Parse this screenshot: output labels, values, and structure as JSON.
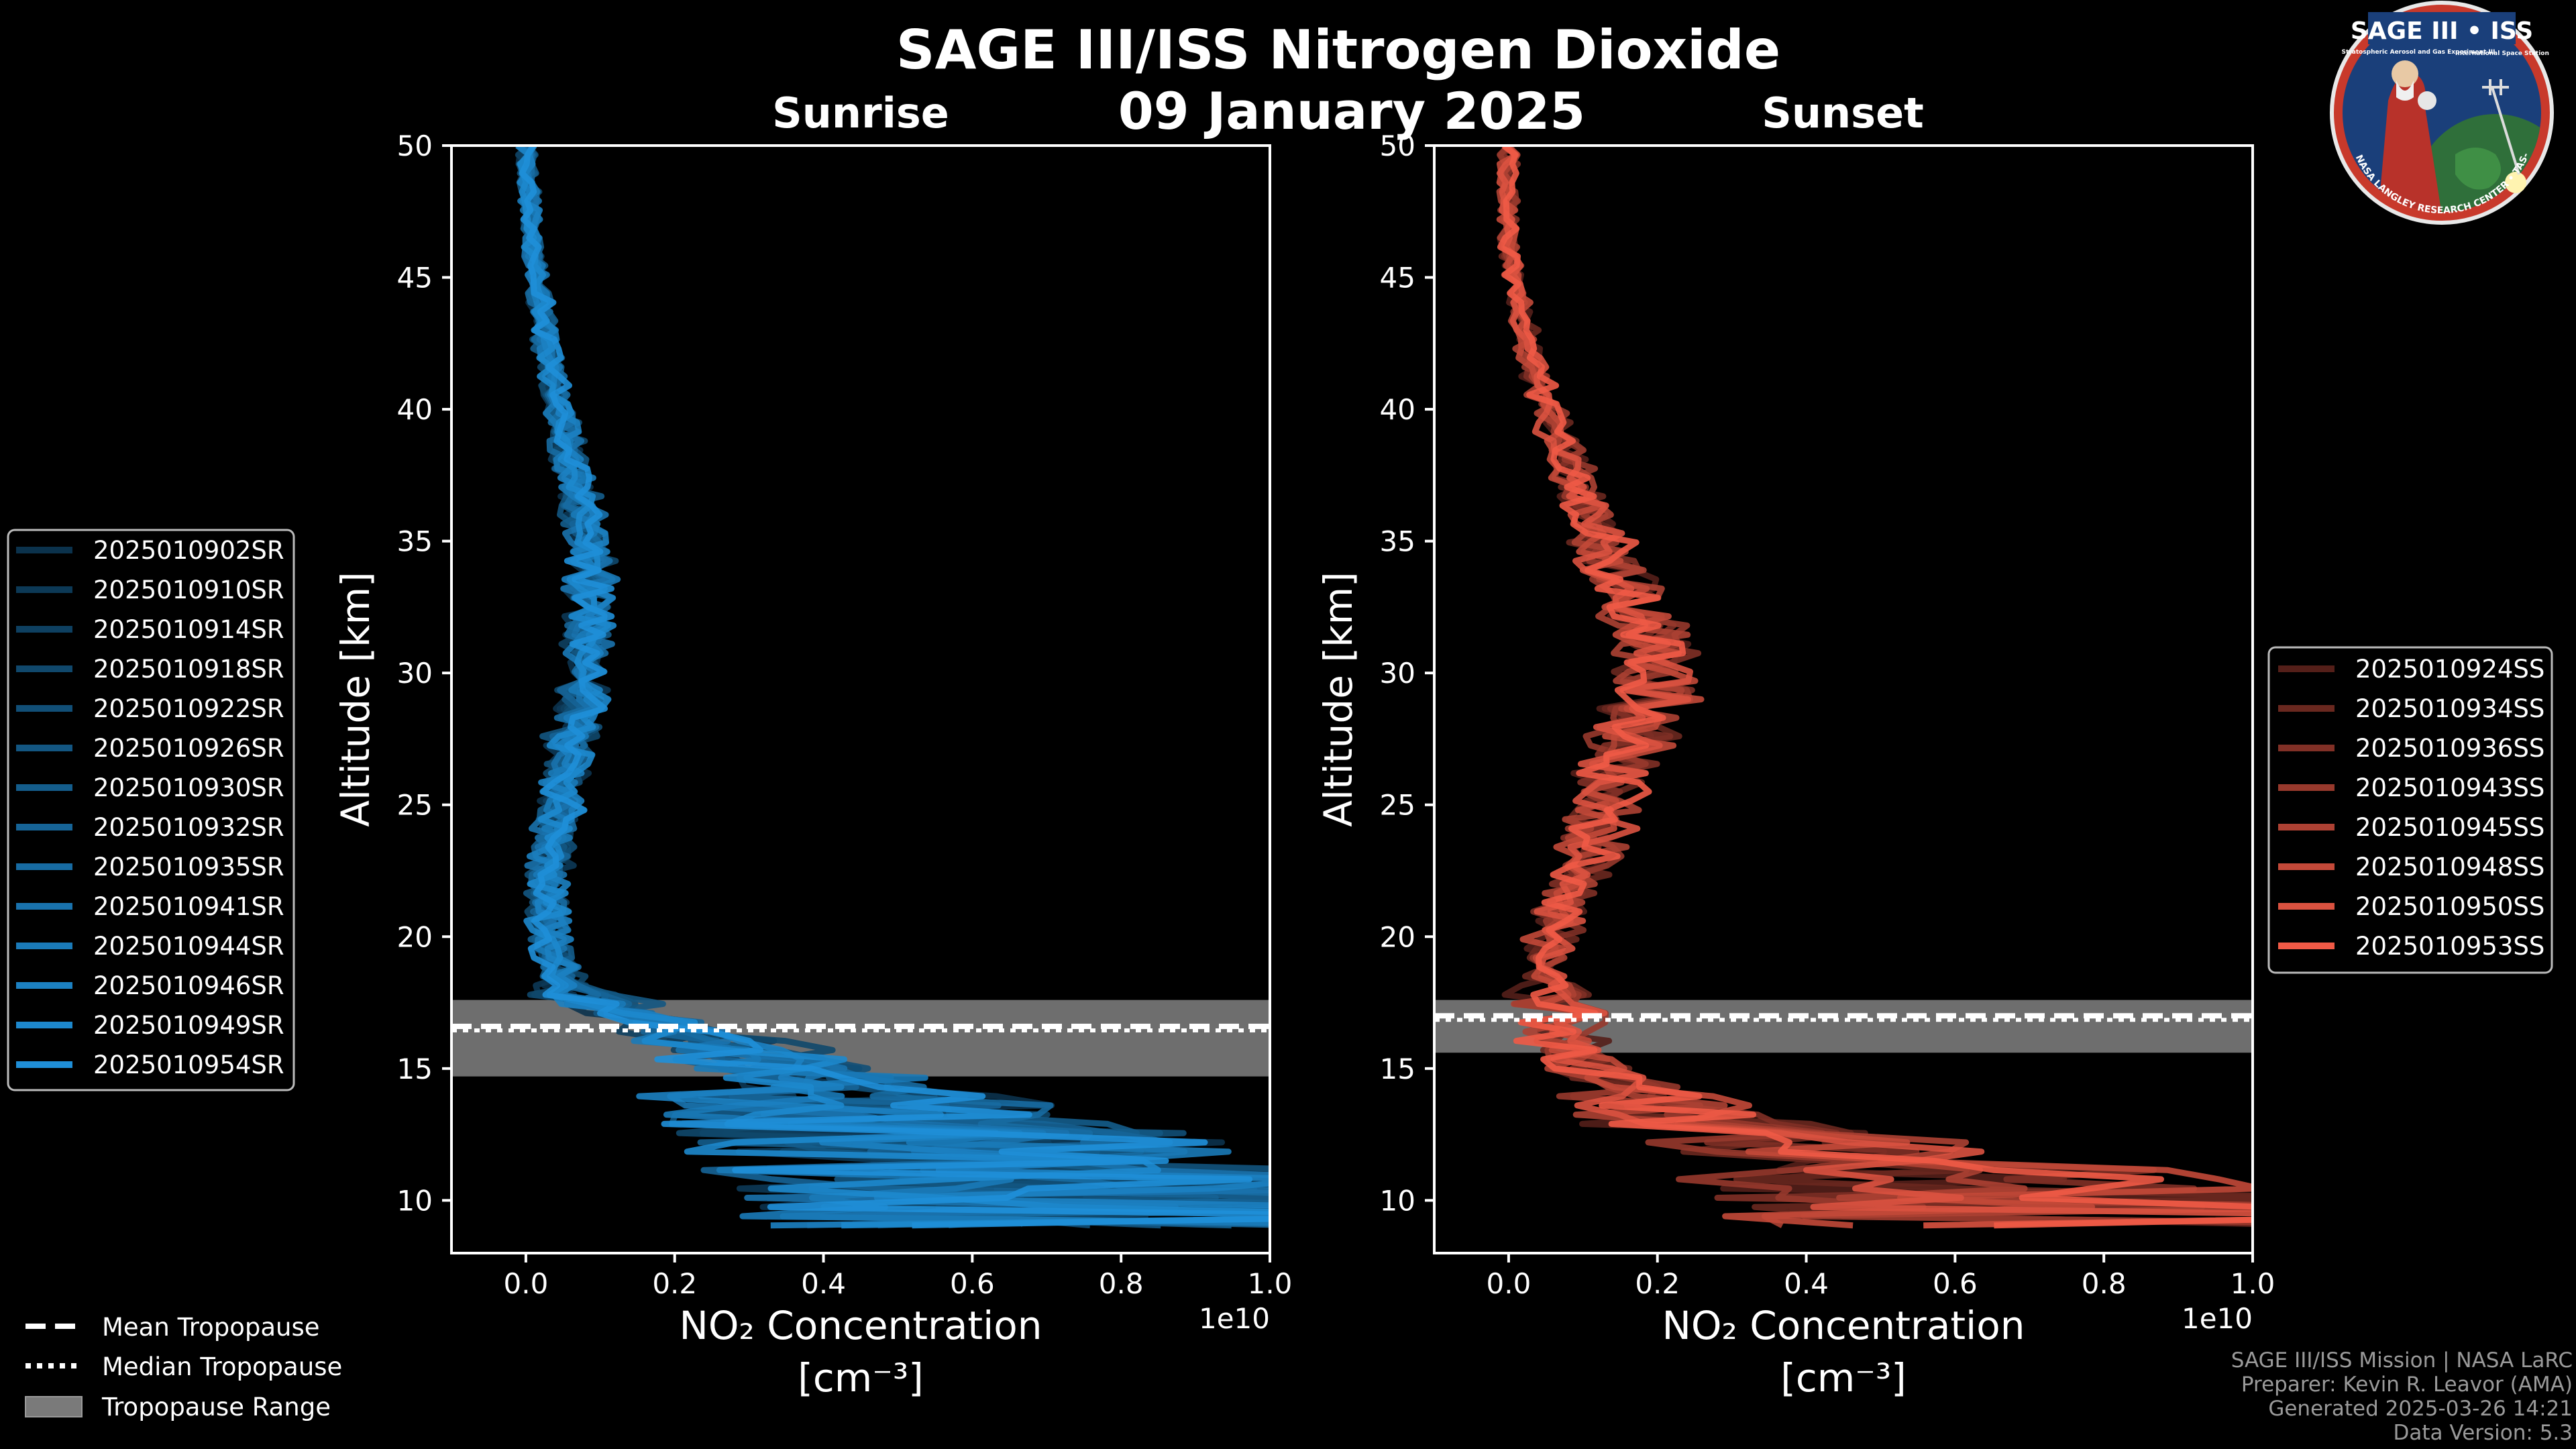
{
  "figure": {
    "title": "SAGE III/ISS Nitrogen Dioxide",
    "date": "09 January 2025"
  },
  "logo": {
    "name": "SAGE III • ISS",
    "subtitle": "Stratospheric Aerosol and Gas Experiment III",
    "iss_caption": "International Space Station",
    "ring_text": "BALL • NASA LANGLEY RESEARCH CENTER • TAS-I • ESA"
  },
  "credits": [
    "SAGE III/ISS Mission | NASA LaRC",
    "Preparer: Kevin R. Leavor (AMA)",
    "Generated 2025-03-26 14:21",
    "Data Version: 5.3"
  ],
  "tropopause_legend": [
    {
      "label": "Mean Tropopause",
      "style": "dashed"
    },
    {
      "label": "Median Tropopause",
      "style": "dotted"
    },
    {
      "label": "Tropopause Range",
      "style": "patch"
    }
  ],
  "chart_data": [
    {
      "type": "line",
      "title": "Sunrise",
      "xlabel": "NO₂ Concentration",
      "xlabel_unit": "[cm⁻³]",
      "ylabel": "Altitude [km]",
      "x_offset_label": "1e10",
      "xlim": [
        -0.1,
        1.0
      ],
      "ylim": [
        8,
        50
      ],
      "xticks": [
        0.0,
        0.2,
        0.4,
        0.6,
        0.8,
        1.0
      ],
      "xtick_labels": [
        "0.0",
        "0.2",
        "0.4",
        "0.6",
        "0.8",
        "1.0"
      ],
      "yticks": [
        10,
        15,
        20,
        25,
        30,
        35,
        40,
        45,
        50
      ],
      "color": "#1f8fd8",
      "tropopause": {
        "mean": 16.6,
        "median": 16.6,
        "min": 14.7,
        "max": 17.6
      },
      "profile_shape": {
        "altitude_km": [
          50,
          46,
          42,
          38,
          34,
          30,
          26,
          24,
          22,
          20,
          18,
          17,
          16,
          15,
          14,
          13,
          12,
          11,
          10,
          9
        ],
        "no2_1e10": [
          0.0,
          0.01,
          0.03,
          0.06,
          0.09,
          0.08,
          0.05,
          0.04,
          0.03,
          0.03,
          0.05,
          0.15,
          0.25,
          0.35,
          0.45,
          0.6,
          0.7,
          0.8,
          0.9,
          1.0
        ]
      },
      "series": [
        {
          "name": "2025010902SR"
        },
        {
          "name": "2025010910SR"
        },
        {
          "name": "2025010914SR"
        },
        {
          "name": "2025010918SR"
        },
        {
          "name": "2025010922SR"
        },
        {
          "name": "2025010926SR"
        },
        {
          "name": "2025010930SR"
        },
        {
          "name": "2025010932SR"
        },
        {
          "name": "2025010935SR"
        },
        {
          "name": "2025010941SR"
        },
        {
          "name": "2025010944SR"
        },
        {
          "name": "2025010946SR"
        },
        {
          "name": "2025010949SR"
        },
        {
          "name": "2025010954SR"
        }
      ]
    },
    {
      "type": "line",
      "title": "Sunset",
      "xlabel": "NO₂ Concentration",
      "xlabel_unit": "[cm⁻³]",
      "ylabel": "Altitude [km]",
      "x_offset_label": "1e10",
      "xlim": [
        -0.1,
        1.0
      ],
      "ylim": [
        8,
        50
      ],
      "xticks": [
        0.0,
        0.2,
        0.4,
        0.6,
        0.8,
        1.0
      ],
      "xtick_labels": [
        "0.0",
        "0.2",
        "0.4",
        "0.6",
        "0.8",
        "1.0"
      ],
      "yticks": [
        10,
        15,
        20,
        25,
        30,
        35,
        40,
        45,
        50
      ],
      "color": "#f05a46",
      "tropopause": {
        "mean": 17.0,
        "median": 17.0,
        "min": 15.6,
        "max": 17.6
      },
      "profile_shape": {
        "altitude_km": [
          50,
          46,
          42,
          38,
          34,
          31,
          29,
          27,
          25,
          23,
          21,
          19,
          17,
          15,
          13,
          12,
          11,
          10,
          9
        ],
        "no2_1e10": [
          0.0,
          0.0,
          0.03,
          0.08,
          0.14,
          0.2,
          0.19,
          0.16,
          0.13,
          0.1,
          0.07,
          0.05,
          0.06,
          0.1,
          0.3,
          0.5,
          0.7,
          0.85,
          1.0
        ]
      },
      "series": [
        {
          "name": "2025010924SS"
        },
        {
          "name": "2025010934SS"
        },
        {
          "name": "2025010936SS"
        },
        {
          "name": "2025010943SS"
        },
        {
          "name": "2025010945SS"
        },
        {
          "name": "2025010948SS"
        },
        {
          "name": "2025010950SS"
        },
        {
          "name": "2025010953SS"
        }
      ]
    }
  ]
}
